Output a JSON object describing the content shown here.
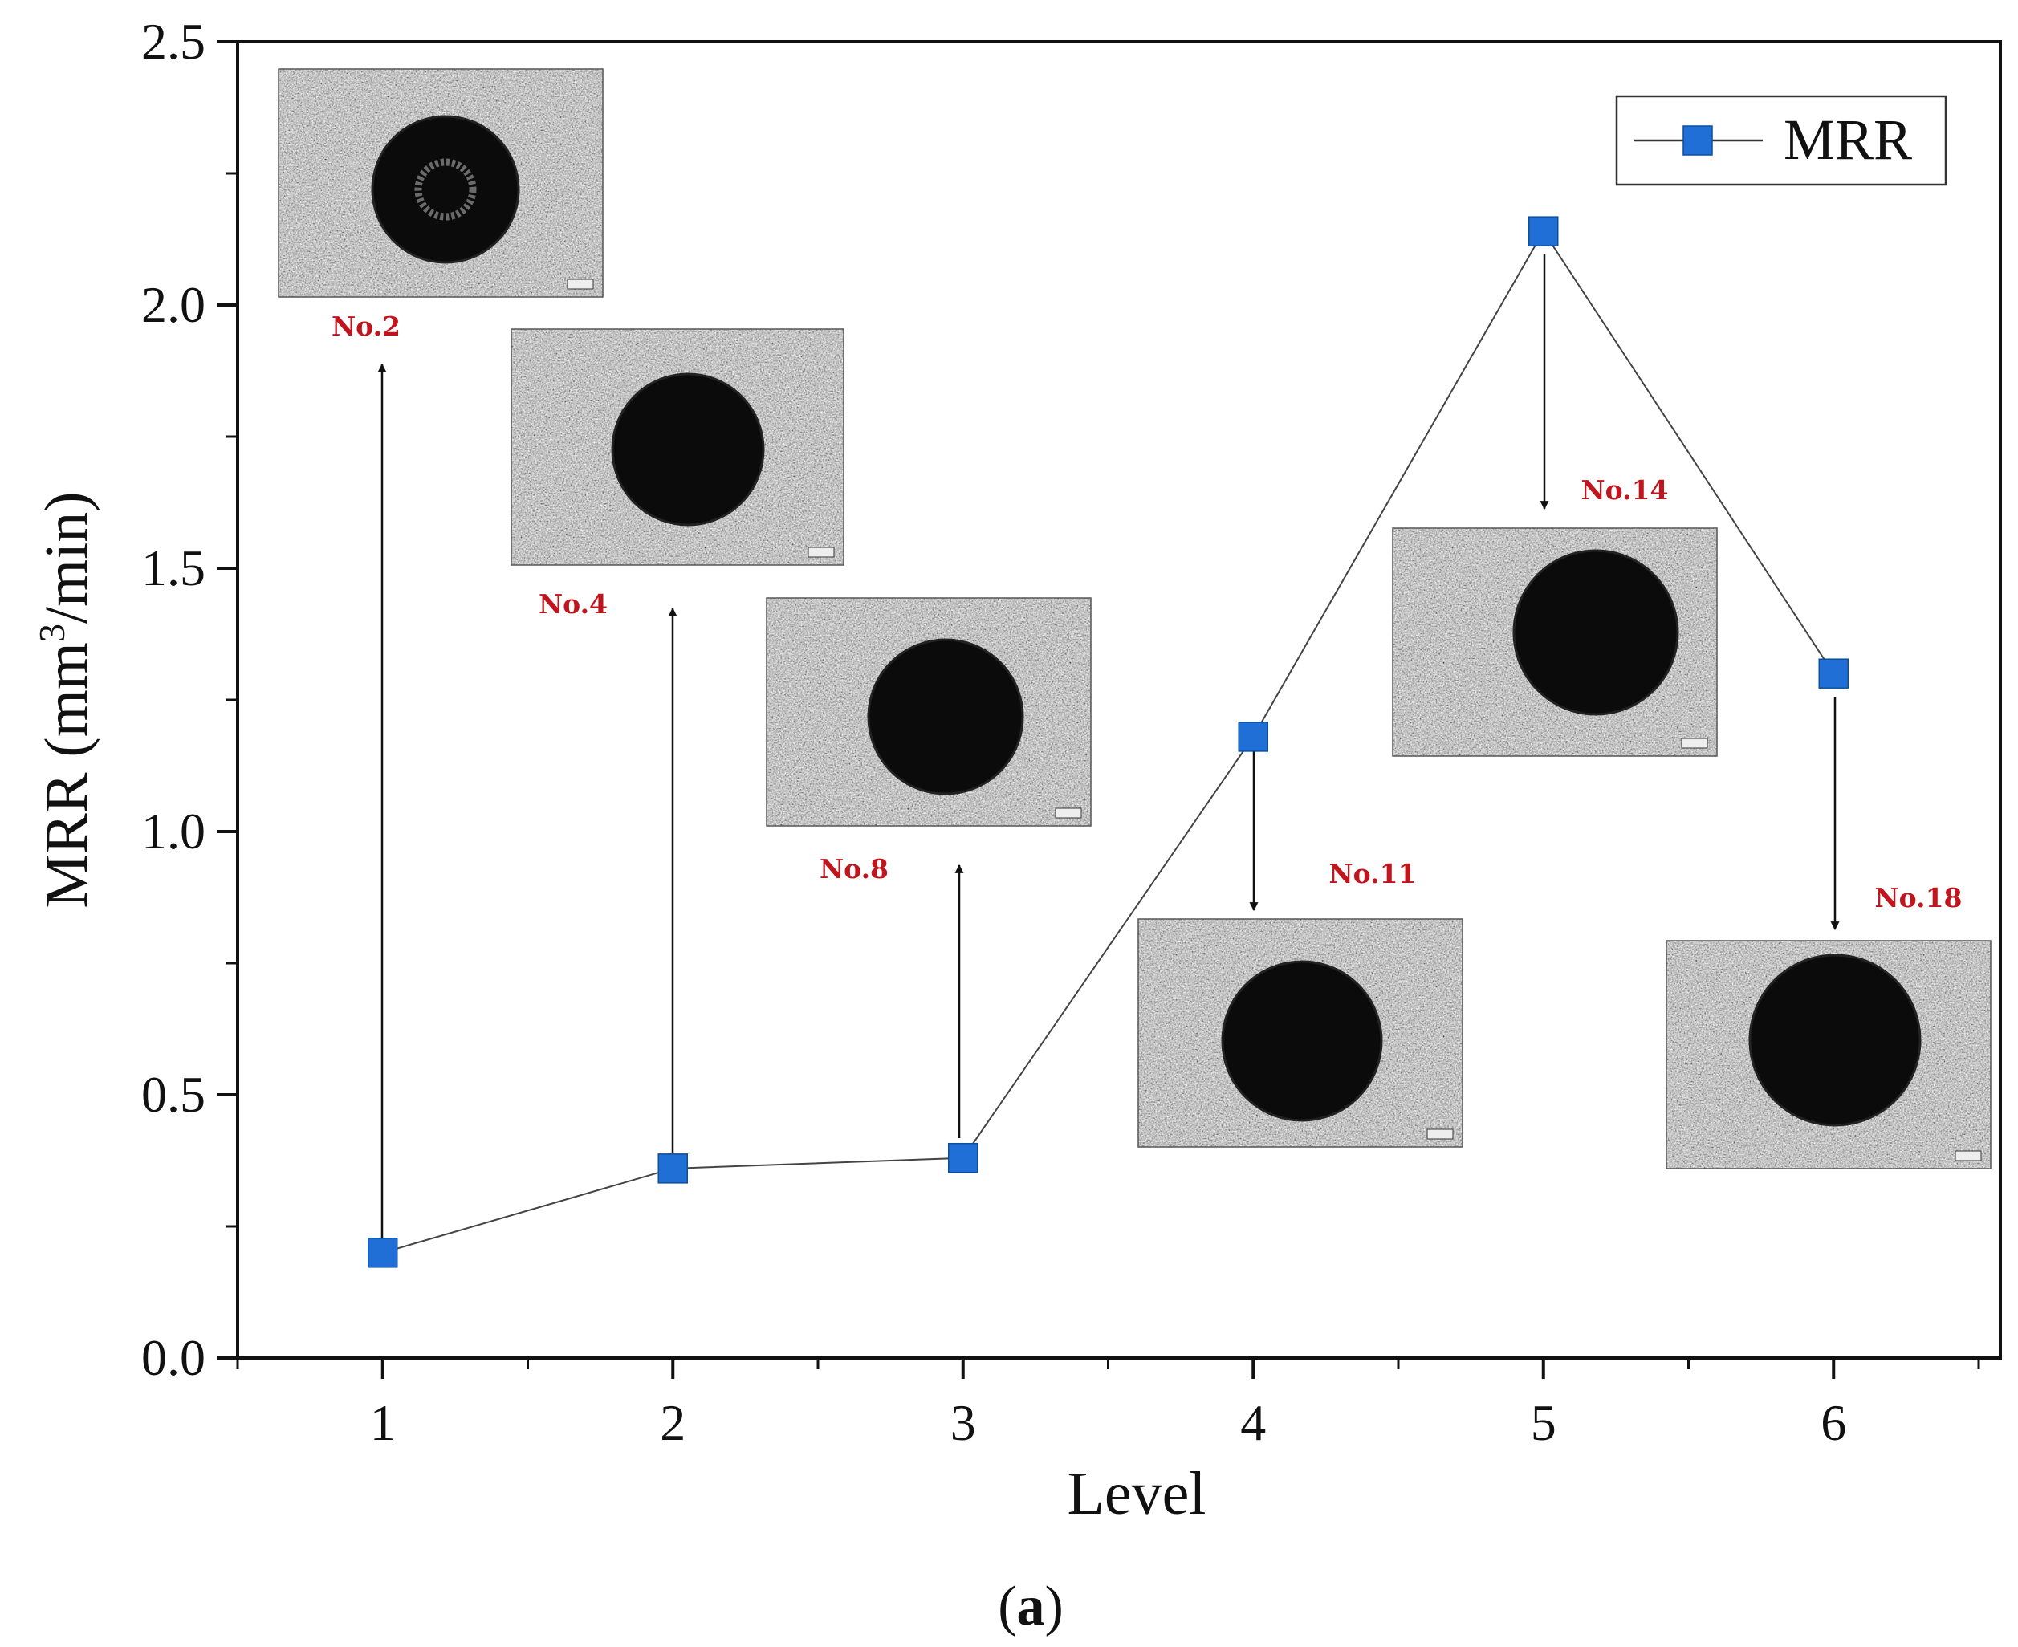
{
  "chart_data": {
    "type": "line",
    "title": "",
    "xlabel": "Level",
    "ylabel_main": "MRR (mm",
    "ylabel_sup": "3",
    "ylabel_tail": "/min)",
    "panel_label": "(a)",
    "panel_label_paren_open": "(",
    "panel_label_letter": "a",
    "panel_label_paren_close": ")",
    "xlim": [
      0.5,
      6.6
    ],
    "ylim": [
      0.0,
      2.5
    ],
    "x_ticks": [
      1,
      2,
      3,
      4,
      5,
      6
    ],
    "x_tick_labels": [
      "1",
      "2",
      "3",
      "4",
      "5",
      "6"
    ],
    "y_ticks": [
      0.0,
      0.5,
      1.0,
      1.5,
      2.0,
      2.5
    ],
    "y_tick_labels": [
      "0.0",
      "0.5",
      "1.0",
      "1.5",
      "2.0",
      "2.5"
    ],
    "grid": false,
    "legend_position": "top-right",
    "series": [
      {
        "name": "MRR",
        "x": [
          1,
          2,
          3,
          4,
          5,
          6
        ],
        "values": [
          0.2,
          0.36,
          0.38,
          1.18,
          2.14,
          1.3
        ],
        "color": "#1f6fd6"
      }
    ],
    "insets": [
      {
        "label": "No.2",
        "level": 1
      },
      {
        "label": "No.4",
        "level": 2
      },
      {
        "label": "No.8",
        "level": 3
      },
      {
        "label": "No.11",
        "level": 4
      },
      {
        "label": "No.14",
        "level": 5
      },
      {
        "label": "No.18",
        "level": 6
      }
    ]
  }
}
